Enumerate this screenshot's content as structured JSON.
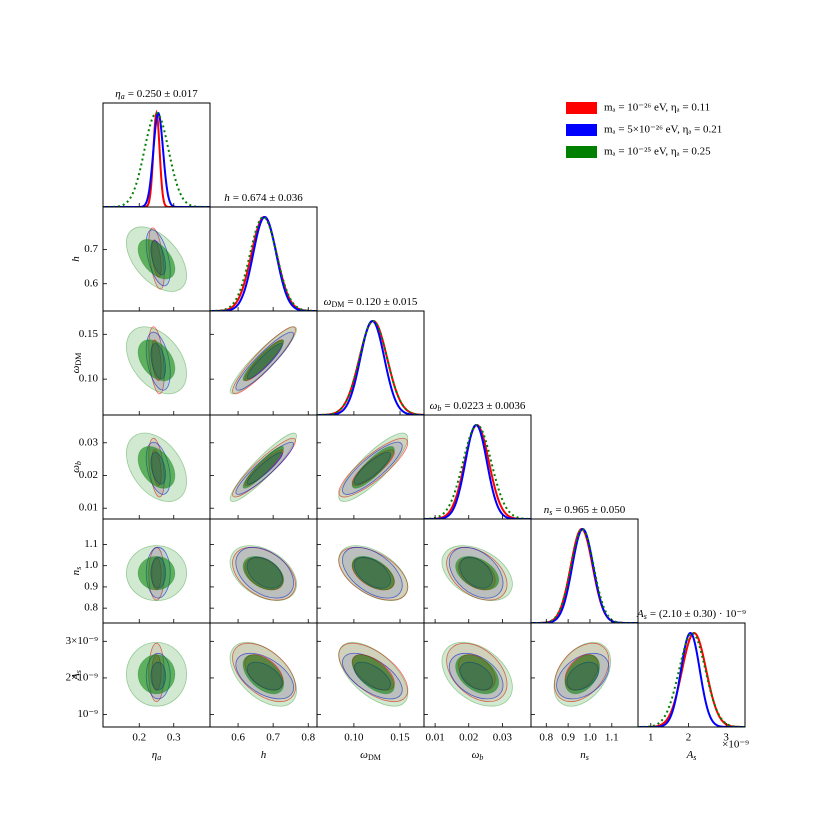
{
  "chart_data": {
    "type": "corner",
    "legend": "upper right",
    "params": [
      {
        "symbol": "η",
        "sub": "a",
        "title": {
          "symbol": "η",
          "sub": "a",
          "text": "= 0.250 ± 0.017"
        },
        "lim": [
          0.095,
          0.405
        ],
        "xticks": [
          0.2,
          0.3
        ]
      },
      {
        "symbol": "h",
        "title": {
          "symbol": "h",
          "text": "= 0.674 ± 0.036"
        },
        "lim": [
          0.52,
          0.825
        ],
        "xticks": [
          0.6,
          0.7,
          0.8
        ],
        "yticks": [
          0.6,
          0.7
        ]
      },
      {
        "symbol": "ω",
        "sub": "DM",
        "title": {
          "symbol": "ω",
          "sub": "DM",
          "text": "= 0.120 ± 0.015"
        },
        "lim": [
          0.06,
          0.176
        ],
        "xticks": [
          {
            "value": 0.1,
            "label": "0.10"
          },
          0.15
        ],
        "yticks": [
          {
            "value": 0.1,
            "label": "0.10"
          },
          0.15
        ]
      },
      {
        "symbol": "ω",
        "sub": "b",
        "title": {
          "symbol": "ω",
          "sub": "b",
          "text": "= 0.0223 ± 0.0036"
        },
        "lim": [
          0.0067,
          0.0385
        ],
        "xticks": [
          0.01,
          0.02,
          0.03
        ],
        "yticks": [
          0.01,
          0.02,
          0.03
        ]
      },
      {
        "symbol": "n",
        "sub": "s",
        "title": {
          "symbol": "n",
          "sub": "s",
          "text": "= 0.965 ± 0.050"
        },
        "lim": [
          0.73,
          1.22
        ],
        "xticks": [
          0.8,
          0.9,
          {
            "value": 1,
            "label": "1.0"
          },
          1.1
        ],
        "yticks": [
          0.8,
          0.9,
          {
            "value": 1,
            "label": "1.0"
          },
          1.1
        ]
      },
      {
        "symbol": "A",
        "sub": "s",
        "title": {
          "symbol": "A",
          "sub": "s",
          "text": "= (2.10 ± 0.30) · 10⁻⁹"
        },
        "lim": [
          6.6e-10,
          3.5e-09
        ],
        "xticks": [
          {
            "value": 1e-09,
            "label": "1"
          },
          {
            "value": 2e-09,
            "label": "2"
          },
          {
            "value": 3e-09,
            "label": "3"
          }
        ],
        "yticks": [
          {
            "value": 1e-09,
            "label": "10⁻⁹"
          },
          {
            "value": 2e-09,
            "label": "2×10⁻⁹"
          },
          {
            "value": 3e-09,
            "label": "3×10⁻⁹"
          }
        ],
        "offset_label": "×10⁻⁹"
      }
    ],
    "series": [
      {
        "name": "mₐ = 10⁻²⁶ eV, ηₐ = 0.11",
        "color": "#ff0000",
        "linestyle": "solid",
        "means": [
          0.25,
          0.674,
          0.121,
          0.0224,
          0.962,
          2.15e-09
        ],
        "sigmas": [
          0.009,
          0.036,
          0.015,
          0.0036,
          0.05,
          3.2e-10
        ]
      },
      {
        "name": "mₐ = 5×10⁻²⁶ eV, ηₐ = 0.21",
        "color": "#0000ff",
        "linestyle": "solid",
        "means": [
          0.255,
          0.676,
          0.12,
          0.0222,
          0.967,
          2.05e-09
        ],
        "sigmas": [
          0.014,
          0.033,
          0.013,
          0.0032,
          0.048,
          2.5e-10
        ]
      },
      {
        "name": "mₐ = 10⁻²⁵ eV, ηₐ = 0.25",
        "color": "#008000",
        "linestyle": "dotted",
        "means": [
          0.25,
          0.672,
          0.121,
          0.0225,
          0.965,
          2.1e-09
        ],
        "sigmas": [
          0.035,
          0.038,
          0.015,
          0.0042,
          0.052,
          3.5e-10
        ]
      }
    ],
    "correlations": [
      [
        -0.5
      ],
      [
        -0.4,
        0.92
      ],
      [
        -0.4,
        0.92,
        0.85
      ],
      [
        0.0,
        -0.4,
        -0.5,
        -0.4
      ],
      [
        0.0,
        -0.5,
        -0.6,
        -0.4,
        0.4
      ]
    ]
  }
}
